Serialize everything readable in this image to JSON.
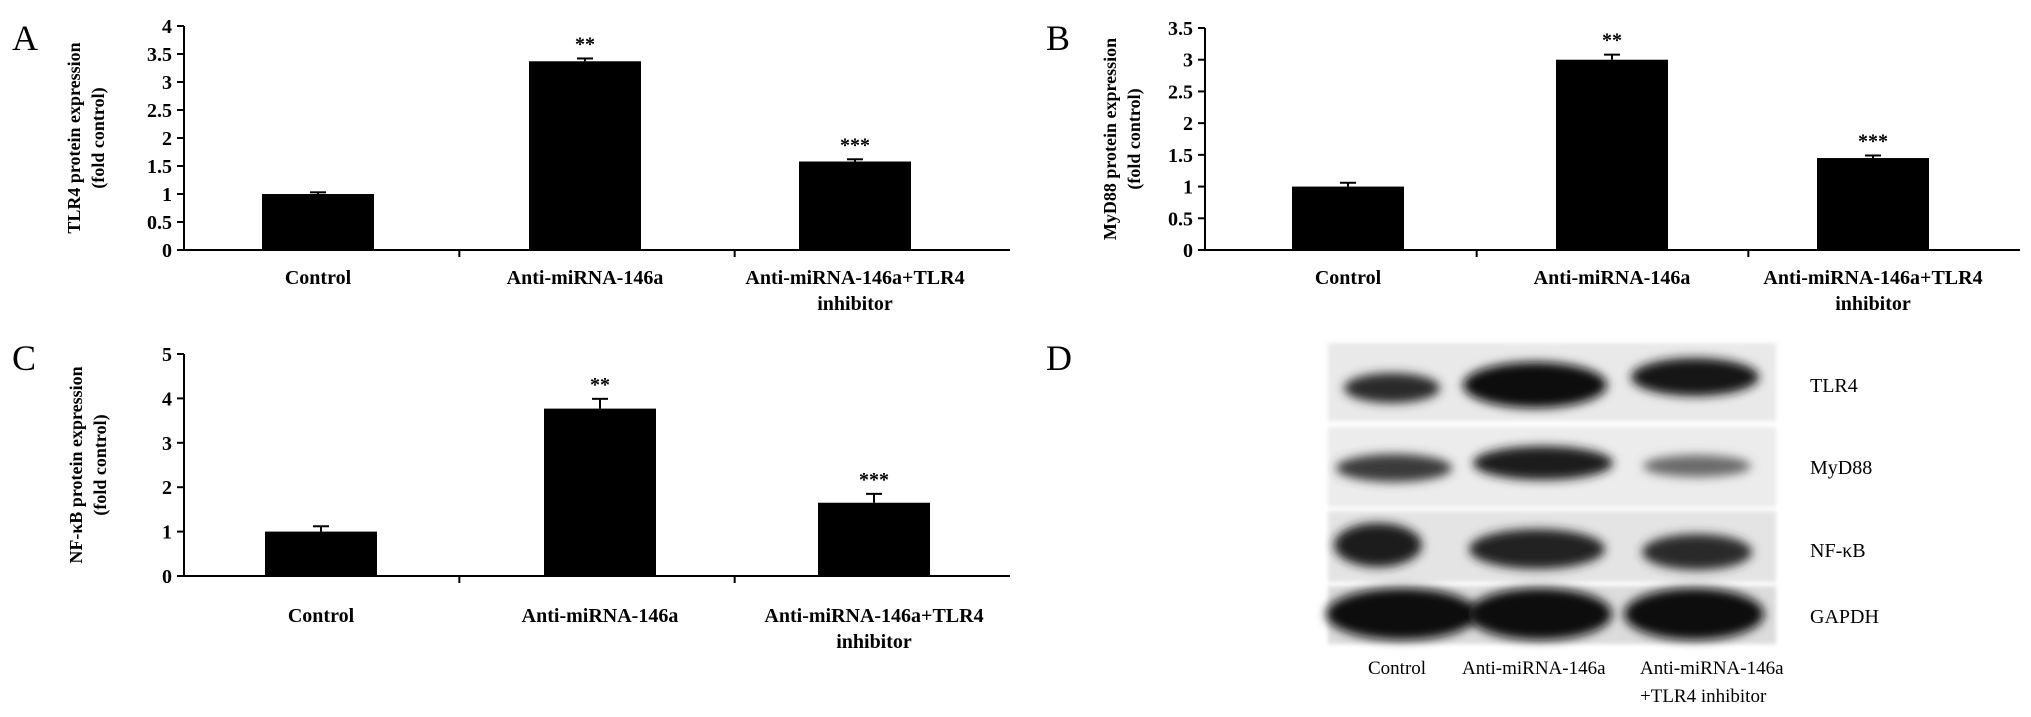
{
  "panels": {
    "a": "A",
    "b": "B",
    "c": "C",
    "d": "D"
  },
  "chart_data": [
    {
      "type": "bar",
      "panel": "A",
      "ylabel_lines": [
        "TLR4 protein expression",
        "(fold control)"
      ],
      "categories": [
        [
          "Control"
        ],
        [
          "Anti-miRNA-146a"
        ],
        [
          "Anti-miRNA-146a+TLR4",
          "inhibitor"
        ]
      ],
      "values": [
        1.0,
        3.37,
        1.58
      ],
      "errors": [
        0.03,
        0.05,
        0.04
      ],
      "significance": [
        "",
        "**",
        "***"
      ],
      "ylim": [
        0,
        4
      ],
      "yticks": [
        "0",
        "0.5",
        "1",
        "1.5",
        "2",
        "2.5",
        "3",
        "3.5",
        "4"
      ],
      "ytick_values": [
        0,
        0.5,
        1,
        1.5,
        2,
        2.5,
        3,
        3.5,
        4
      ],
      "bar_color": "#000000"
    },
    {
      "type": "bar",
      "panel": "B",
      "ylabel_lines": [
        "MyD88 protein expression",
        "(fold control)"
      ],
      "categories": [
        [
          "Control"
        ],
        [
          "Anti-miRNA-146a"
        ],
        [
          "Anti-miRNA-146a+TLR4",
          "inhibitor"
        ]
      ],
      "values": [
        1.0,
        3.0,
        1.45
      ],
      "errors": [
        0.06,
        0.08,
        0.04
      ],
      "significance": [
        "",
        "**",
        "***"
      ],
      "ylim": [
        0,
        3.5
      ],
      "yticks": [
        "0",
        "0.5",
        "1",
        "1.5",
        "2",
        "2.5",
        "3",
        "3.5"
      ],
      "ytick_values": [
        0,
        0.5,
        1,
        1.5,
        2,
        2.5,
        3,
        3.5
      ],
      "bar_color": "#000000"
    },
    {
      "type": "bar",
      "panel": "C",
      "ylabel_lines": [
        "NF-κB protein expression",
        "(fold control)"
      ],
      "categories": [
        [
          "Control"
        ],
        [
          "Anti-miRNA-146a"
        ],
        [
          "Anti-miRNA-146a+TLR4",
          "inhibitor"
        ]
      ],
      "values": [
        1.0,
        3.77,
        1.65
      ],
      "errors": [
        0.12,
        0.22,
        0.2
      ],
      "significance": [
        "",
        "**",
        "***"
      ],
      "ylim": [
        0,
        5
      ],
      "yticks": [
        "0",
        "1",
        "2",
        "3",
        "4",
        "5"
      ],
      "ytick_values": [
        0,
        1,
        2,
        3,
        4,
        5
      ],
      "bar_color": "#000000"
    }
  ],
  "blot": {
    "proteins": [
      "TLR4",
      "MyD88",
      "NF-κB",
      "GAPDH"
    ],
    "lanes": [
      "Control",
      "Anti-miRNA-146a"
    ],
    "lane3_lines": [
      "Anti-miRNA-146a",
      "+TLR4 inhibitor"
    ]
  }
}
